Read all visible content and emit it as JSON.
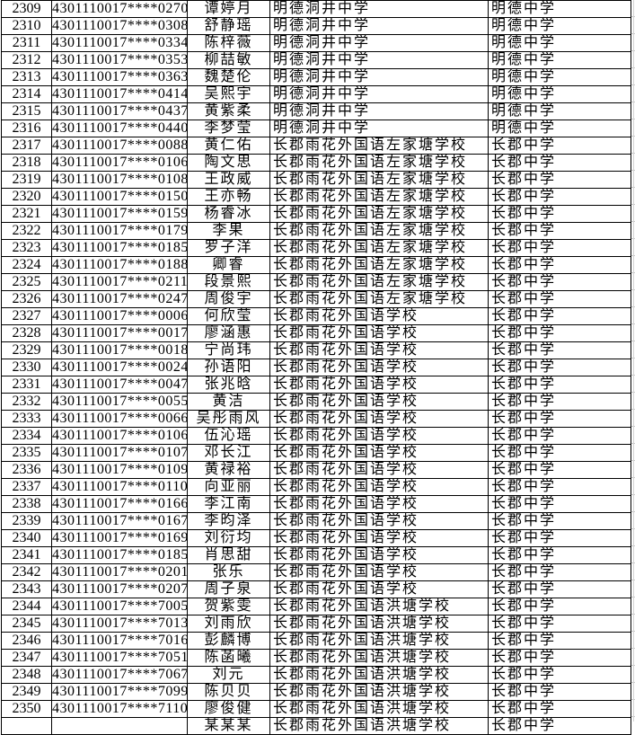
{
  "colors": {
    "background": "#ffffff",
    "cell_border": "#000000",
    "text": "#000000",
    "faint_gridline": "#c9c9c9"
  },
  "table": {
    "rows": [
      {
        "number": "2309",
        "id": "4301110017****0270",
        "name": "谭婷月",
        "school": "明德洞井中学",
        "admitted": "明德中学"
      },
      {
        "number": "2310",
        "id": "4301110017****0308",
        "name": "舒静瑶",
        "school": "明德洞井中学",
        "admitted": "明德中学"
      },
      {
        "number": "2311",
        "id": "4301110017****0334",
        "name": "陈梓薇",
        "school": "明德洞井中学",
        "admitted": "明德中学"
      },
      {
        "number": "2312",
        "id": "4301110017****0353",
        "name": "柳喆敏",
        "school": "明德洞井中学",
        "admitted": "明德中学"
      },
      {
        "number": "2313",
        "id": "4301110017****0363",
        "name": "魏楚伦",
        "school": "明德洞井中学",
        "admitted": "明德中学"
      },
      {
        "number": "2314",
        "id": "4301110017****0414",
        "name": "吴熙宇",
        "school": "明德洞井中学",
        "admitted": "明德中学"
      },
      {
        "number": "2315",
        "id": "4301110017****0437",
        "name": "黄紫柔",
        "school": "明德洞井中学",
        "admitted": "明德中学"
      },
      {
        "number": "2316",
        "id": "4301110017****0440",
        "name": "李梦莹",
        "school": "明德洞井中学",
        "admitted": "明德中学"
      },
      {
        "number": "2317",
        "id": "4301110017****0088",
        "name": "黄仁佑",
        "school": "长郡雨花外国语左家塘学校",
        "admitted": "长郡中学"
      },
      {
        "number": "2318",
        "id": "4301110017****0106",
        "name": "陶文思",
        "school": "长郡雨花外国语左家塘学校",
        "admitted": "长郡中学"
      },
      {
        "number": "2319",
        "id": "4301110017****0108",
        "name": "王政威",
        "school": "长郡雨花外国语左家塘学校",
        "admitted": "长郡中学"
      },
      {
        "number": "2320",
        "id": "4301110017****0150",
        "name": "王亦畅",
        "school": "长郡雨花外国语左家塘学校",
        "admitted": "长郡中学"
      },
      {
        "number": "2321",
        "id": "4301110017****0159",
        "name": "杨睿冰",
        "school": "长郡雨花外国语左家塘学校",
        "admitted": "长郡中学"
      },
      {
        "number": "2322",
        "id": "4301110017****0179",
        "name": "李果",
        "school": "长郡雨花外国语左家塘学校",
        "admitted": "长郡中学"
      },
      {
        "number": "2323",
        "id": "4301110017****0185",
        "name": "罗子洋",
        "school": "长郡雨花外国语左家塘学校",
        "admitted": "长郡中学"
      },
      {
        "number": "2324",
        "id": "4301110017****0188",
        "name": "卿睿",
        "school": "长郡雨花外国语左家塘学校",
        "admitted": "长郡中学"
      },
      {
        "number": "2325",
        "id": "4301110017****0211",
        "name": "段景熙",
        "school": "长郡雨花外国语左家塘学校",
        "admitted": "长郡中学"
      },
      {
        "number": "2326",
        "id": "4301110017****0247",
        "name": "周俊宇",
        "school": "长郡雨花外国语左家塘学校",
        "admitted": "长郡中学"
      },
      {
        "number": "2327",
        "id": "4301110017****0006",
        "name": "何欣莹",
        "school": "长郡雨花外国语学校",
        "admitted": "长郡中学"
      },
      {
        "number": "2328",
        "id": "4301110017****0017",
        "name": "廖涵惠",
        "school": "长郡雨花外国语学校",
        "admitted": "长郡中学"
      },
      {
        "number": "2329",
        "id": "4301110017****0018",
        "name": "宁尚玮",
        "school": "长郡雨花外国语学校",
        "admitted": "长郡中学"
      },
      {
        "number": "2330",
        "id": "4301110017****0024",
        "name": "孙语阳",
        "school": "长郡雨花外国语学校",
        "admitted": "长郡中学"
      },
      {
        "number": "2331",
        "id": "4301110017****0047",
        "name": "张兆晗",
        "school": "长郡雨花外国语学校",
        "admitted": "长郡中学"
      },
      {
        "number": "2332",
        "id": "4301110017****0055",
        "name": "黄洁",
        "school": "长郡雨花外国语学校",
        "admitted": "长郡中学"
      },
      {
        "number": "2333",
        "id": "4301110017****0066",
        "name": "吴彤雨风",
        "school": "长郡雨花外国语学校",
        "admitted": "长郡中学"
      },
      {
        "number": "2334",
        "id": "4301110017****0106",
        "name": "伍沁瑶",
        "school": "长郡雨花外国语学校",
        "admitted": "长郡中学"
      },
      {
        "number": "2335",
        "id": "4301110017****0107",
        "name": "邓长江",
        "school": "长郡雨花外国语学校",
        "admitted": "长郡中学"
      },
      {
        "number": "2336",
        "id": "4301110017****0109",
        "name": "黄禄裕",
        "school": "长郡雨花外国语学校",
        "admitted": "长郡中学"
      },
      {
        "number": "2337",
        "id": "4301110017****0110",
        "name": "向亚丽",
        "school": "长郡雨花外国语学校",
        "admitted": "长郡中学"
      },
      {
        "number": "2338",
        "id": "4301110017****0166",
        "name": "李江南",
        "school": "长郡雨花外国语学校",
        "admitted": "长郡中学"
      },
      {
        "number": "2339",
        "id": "4301110017****0167",
        "name": "李昀泽",
        "school": "长郡雨花外国语学校",
        "admitted": "长郡中学"
      },
      {
        "number": "2340",
        "id": "4301110017****0169",
        "name": "刘衍均",
        "school": "长郡雨花外国语学校",
        "admitted": "长郡中学"
      },
      {
        "number": "2341",
        "id": "4301110017****0185",
        "name": "肖思甜",
        "school": "长郡雨花外国语学校",
        "admitted": "长郡中学"
      },
      {
        "number": "2342",
        "id": "4301110017****0201",
        "name": "张乐",
        "school": "长郡雨花外国语学校",
        "admitted": "长郡中学"
      },
      {
        "number": "2343",
        "id": "4301110017****0207",
        "name": "周子泉",
        "school": "长郡雨花外国语学校",
        "admitted": "长郡中学"
      },
      {
        "number": "2344",
        "id": "4301110017****7005",
        "name": "贺紫雯",
        "school": "长郡雨花外国语洪塘学校",
        "admitted": "长郡中学"
      },
      {
        "number": "2345",
        "id": "4301110017****7013",
        "name": "刘雨欣",
        "school": "长郡雨花外国语洪塘学校",
        "admitted": "长郡中学"
      },
      {
        "number": "2346",
        "id": "4301110017****7016",
        "name": "彭麟博",
        "school": "长郡雨花外国语洪塘学校",
        "admitted": "长郡中学"
      },
      {
        "number": "2347",
        "id": "4301110017****7051",
        "name": "陈菡曦",
        "school": "长郡雨花外国语洪塘学校",
        "admitted": "长郡中学"
      },
      {
        "number": "2348",
        "id": "4301110017****7067",
        "name": "刘元",
        "school": "长郡雨花外国语洪塘学校",
        "admitted": "长郡中学"
      },
      {
        "number": "2349",
        "id": "4301110017****7099",
        "name": "陈贝贝",
        "school": "长郡雨花外国语洪塘学校",
        "admitted": "长郡中学"
      },
      {
        "number": "2350",
        "id": "4301110017****7110",
        "name": "廖俊健",
        "school": "长郡雨花外国语洪塘学校",
        "admitted": "长郡中学"
      }
    ],
    "partial_row": {
      "number": "",
      "id": "",
      "name": "某某某",
      "school": "长郡雨花外国语洪塘学校",
      "admitted": "长郡中学"
    }
  }
}
